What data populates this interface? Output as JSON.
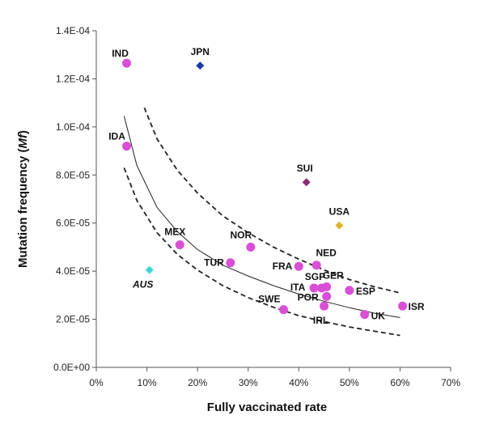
{
  "chart_data": {
    "type": "scatter",
    "title": "",
    "xlabel": "Fully vaccinated rate",
    "ylabel_prefix": "Mutation frequency (",
    "ylabel_italic": "Mf",
    "ylabel_suffix": ")",
    "xlim": [
      0,
      70
    ],
    "ylim": [
      0,
      0.00014
    ],
    "x_ticks": [
      "0%",
      "10%",
      "20%",
      "30%",
      "40%",
      "50%",
      "60%",
      "70%"
    ],
    "y_ticks": [
      "0.0E+00",
      "2.0E-05",
      "4.0E-05",
      "6.0E-05",
      "8.0E-05",
      "1.0E-04",
      "1.2E-04",
      "1.4E-04"
    ],
    "grid": false,
    "points": [
      {
        "label": "IND",
        "x": 6.0,
        "y": 0.0001265,
        "marker": "circle",
        "color": "#d94fd6"
      },
      {
        "label": "JPN",
        "x": 20.5,
        "y": 0.0001255,
        "marker": "diamond",
        "color": "#1a3aa8"
      },
      {
        "label": "IDA",
        "x": 6.0,
        "y": 9.2e-05,
        "marker": "circle",
        "color": "#d94fd6"
      },
      {
        "label": "SUI",
        "x": 41.5,
        "y": 7.7e-05,
        "marker": "diamond",
        "color": "#8a2a6e"
      },
      {
        "label": "USA",
        "x": 48.0,
        "y": 5.9e-05,
        "marker": "diamond",
        "color": "#e1b42c"
      },
      {
        "label": "MEX",
        "x": 16.5,
        "y": 5.1e-05,
        "marker": "circle",
        "color": "#d94fd6"
      },
      {
        "label": "NOR",
        "x": 30.5,
        "y": 5e-05,
        "marker": "circle",
        "color": "#d94fd6"
      },
      {
        "label": "AUS",
        "x": 10.5,
        "y": 4.05e-05,
        "marker": "diamond",
        "color": "#3fd6cf"
      },
      {
        "label": "TUR",
        "x": 26.5,
        "y": 4.35e-05,
        "marker": "circle",
        "color": "#d94fd6"
      },
      {
        "label": "NED",
        "x": 43.5,
        "y": 4.25e-05,
        "marker": "circle",
        "color": "#d94fd6"
      },
      {
        "label": "FRA",
        "x": 40.0,
        "y": 4.2e-05,
        "marker": "circle",
        "color": "#d94fd6"
      },
      {
        "label": "ITA",
        "x": 43.0,
        "y": 3.3e-05,
        "marker": "circle",
        "color": "#d94fd6"
      },
      {
        "label": "SGP",
        "x": 44.5,
        "y": 3.3e-05,
        "marker": "circle",
        "color": "#d94fd6"
      },
      {
        "label": "GER",
        "x": 45.5,
        "y": 3.35e-05,
        "marker": "circle",
        "color": "#d94fd6"
      },
      {
        "label": "ESP",
        "x": 50.0,
        "y": 3.2e-05,
        "marker": "circle",
        "color": "#d94fd6"
      },
      {
        "label": "POR",
        "x": 45.5,
        "y": 2.95e-05,
        "marker": "circle",
        "color": "#d94fd6"
      },
      {
        "label": "ISR",
        "x": 60.5,
        "y": 2.55e-05,
        "marker": "circle",
        "color": "#d94fd6"
      },
      {
        "label": "SWE",
        "x": 37.0,
        "y": 2.4e-05,
        "marker": "circle",
        "color": "#d94fd6"
      },
      {
        "label": "IRL",
        "x": 45.0,
        "y": 2.55e-05,
        "marker": "circle",
        "color": "#d94fd6"
      },
      {
        "label": "UK",
        "x": 53.0,
        "y": 2.2e-05,
        "marker": "circle",
        "color": "#d94fd6"
      }
    ],
    "fit_curve": {
      "style": "solid",
      "points": [
        [
          5.5,
          0.0001045
        ],
        [
          8,
          8.4e-05
        ],
        [
          12,
          6.65e-05
        ],
        [
          16,
          5.65e-05
        ],
        [
          20,
          4.9e-05
        ],
        [
          25,
          4.25e-05
        ],
        [
          30,
          3.8e-05
        ],
        [
          35,
          3.4e-05
        ],
        [
          40,
          3.05e-05
        ],
        [
          45,
          2.75e-05
        ],
        [
          50,
          2.48e-05
        ],
        [
          55,
          2.25e-05
        ],
        [
          60,
          2.07e-05
        ]
      ]
    },
    "upper_band": {
      "style": "dashed",
      "points": [
        [
          9.5,
          0.000108
        ],
        [
          12,
          9.5e-05
        ],
        [
          16,
          8.2e-05
        ],
        [
          20,
          7.25e-05
        ],
        [
          25,
          6.3e-05
        ],
        [
          30,
          5.6e-05
        ],
        [
          35,
          5e-05
        ],
        [
          40,
          4.5e-05
        ],
        [
          45,
          4.05e-05
        ],
        [
          50,
          3.65e-05
        ],
        [
          55,
          3.35e-05
        ],
        [
          60,
          3.1e-05
        ]
      ]
    },
    "lower_band": {
      "style": "dashed",
      "points": [
        [
          5.5,
          8.3e-05
        ],
        [
          8,
          6.95e-05
        ],
        [
          12,
          5.6e-05
        ],
        [
          16,
          4.7e-05
        ],
        [
          20,
          4.05e-05
        ],
        [
          25,
          3.4e-05
        ],
        [
          30,
          2.9e-05
        ],
        [
          35,
          2.5e-05
        ],
        [
          40,
          2.15e-05
        ],
        [
          45,
          1.9e-05
        ],
        [
          50,
          1.68e-05
        ],
        [
          55,
          1.5e-05
        ],
        [
          60,
          1.33e-05
        ]
      ]
    }
  }
}
